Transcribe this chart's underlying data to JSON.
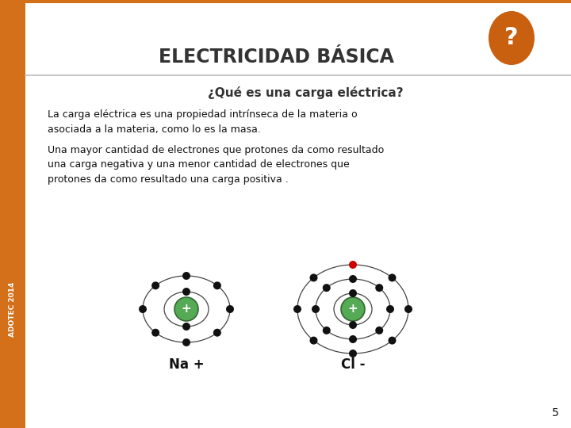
{
  "title": "ELECTRICIDAD BÁSICA",
  "subtitle": "¿Qué es una carga eléctrica?",
  "body_text_1": "La carga eléctrica es una propiedad intrínseca de la materia o\nasociada a la materia, como lo es la masa.",
  "body_text_2": "Una mayor cantidad de electrones que protones da como resultado\nuna carga negativa y una menor cantidad de electrones que\nprotones da como resultado una carga positiva .",
  "label_na": "Na +",
  "label_cl": "Cl -",
  "page_number": "5",
  "adotec_label": "ADOTEC 2014",
  "sidebar_orange": "#D4701A",
  "bg_color": "#FFFFFF",
  "title_color": "#333333",
  "text_color": "#111111",
  "question_bg": "#C86010",
  "question_mark_color": "#FFFFFF",
  "line_color": "#BBBBBB",
  "nucleus_color": "#55AA55",
  "electron_color": "#111111",
  "electron_red": "#CC0000"
}
